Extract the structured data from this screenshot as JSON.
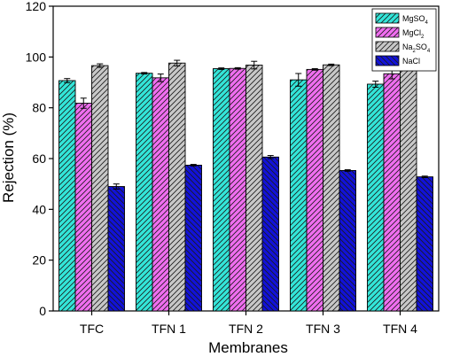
{
  "chart_data": {
    "type": "bar",
    "xlabel": "Membranes",
    "ylabel": "Rejection (%)",
    "ylim": [
      0,
      120
    ],
    "yticks": [
      0,
      20,
      40,
      60,
      80,
      100,
      120
    ],
    "grid": false,
    "legend_position": "top-right",
    "categories": [
      "TFC",
      "TFN 1",
      "TFN 2",
      "TFN 3",
      "TFN 4"
    ],
    "series": [
      {
        "name": "MgSO4",
        "name_base": "MgSO",
        "name_sub": "4",
        "name_tail": "",
        "color": "#33e6d9",
        "pattern": "diag-right",
        "values": [
          90.7,
          93.6,
          95.4,
          91.0,
          89.3
        ],
        "errors": [
          0.8,
          0.3,
          0.3,
          2.5,
          1.2
        ]
      },
      {
        "name": "MgCl2",
        "name_base": "MgCl",
        "name_sub": "2",
        "name_tail": "",
        "color": "#f06ef0",
        "pattern": "diag-right",
        "values": [
          81.8,
          91.8,
          95.5,
          95.1,
          93.4
        ],
        "errors": [
          2.0,
          1.5,
          0.3,
          0.3,
          2.0
        ]
      },
      {
        "name": "Na2SO4",
        "name_base": "Na",
        "name_sub": "2",
        "name_tail": "SO",
        "name_sub2": "4",
        "color": "#c8c8c8",
        "pattern": "diag-right",
        "values": [
          96.6,
          97.6,
          96.8,
          96.9,
          96.4
        ],
        "errors": [
          0.7,
          1.1,
          1.5,
          0.3,
          0.3
        ]
      },
      {
        "name": "NaCl",
        "name_base": "NaCl",
        "name_sub": "",
        "name_tail": "",
        "color": "#1212d8",
        "pattern": "diag-left",
        "values": [
          49.0,
          57.4,
          60.6,
          55.3,
          52.8
        ],
        "errors": [
          1.0,
          0.3,
          0.6,
          0.3,
          0.3
        ]
      }
    ]
  }
}
